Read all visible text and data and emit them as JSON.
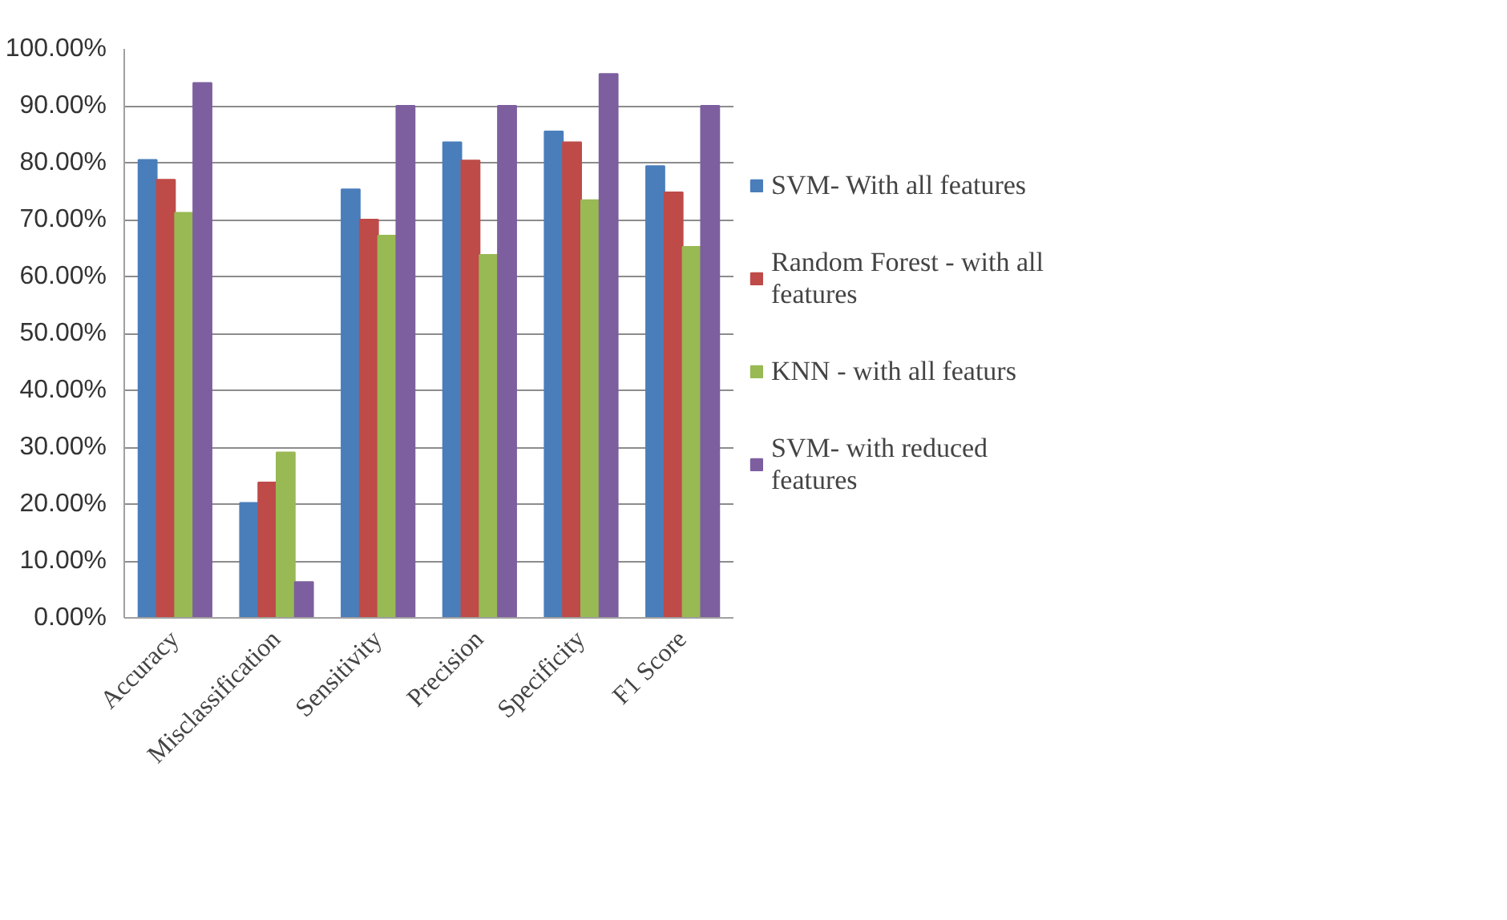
{
  "chart_data": {
    "type": "bar",
    "categories": [
      "Accuracy",
      "Misclassification",
      "Sensitivity",
      "Precision",
      "Specificity",
      "F1 Score"
    ],
    "series": [
      {
        "name": "SVM- With all features",
        "color": "#4a7ebb",
        "values": [
          80.5,
          20.2,
          75.3,
          83.6,
          85.5,
          79.4
        ]
      },
      {
        "name": "Random Forest - with all features",
        "color": "#be4b48",
        "values": [
          77,
          23.8,
          70,
          80.4,
          83.6,
          74.8
        ]
      },
      {
        "name": "KNN - with all featurs",
        "color": "#98b954",
        "values": [
          71.2,
          29.1,
          67.2,
          63.8,
          73.4,
          65.2
        ]
      },
      {
        "name": "SVM- with reduced features",
        "color": "#7d5fa0",
        "values": [
          94,
          6.3,
          90,
          90,
          95.6,
          90
        ]
      }
    ],
    "ylim": [
      0,
      100
    ],
    "yticks": [
      {
        "value": 0,
        "label": "0.00%"
      },
      {
        "value": 10,
        "label": "10.00%"
      },
      {
        "value": 20,
        "label": "20.00%"
      },
      {
        "value": 30,
        "label": "30.00%"
      },
      {
        "value": 40,
        "label": "40.00%"
      },
      {
        "value": 50,
        "label": "50.00%"
      },
      {
        "value": 60,
        "label": "60.00%"
      },
      {
        "value": 70,
        "label": "70.00%"
      },
      {
        "value": 80,
        "label": "80.00%"
      },
      {
        "value": 90,
        "label": "90.00%"
      },
      {
        "value": 100,
        "label": "100.00%"
      }
    ],
    "grid": "y",
    "legend": "right"
  }
}
